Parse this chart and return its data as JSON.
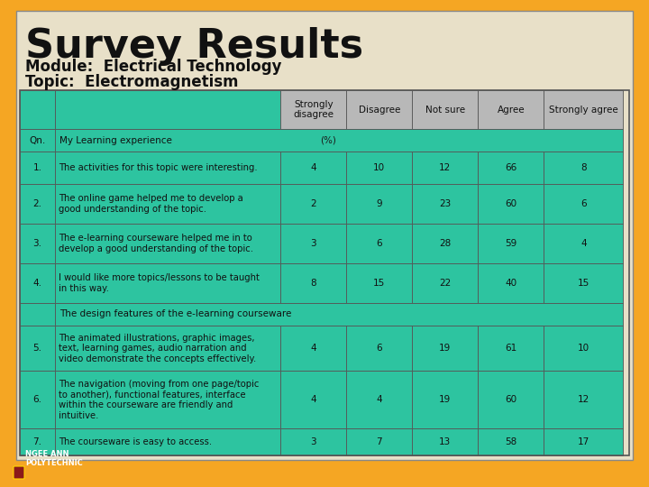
{
  "title": "Survey Results",
  "subtitle1": "Module:  Electrical Technology",
  "subtitle2": "Topic:  Electromagnetism",
  "bg_color": "#F5A623",
  "panel_color": "#E8E0C8",
  "teal_color": "#2DC4A0",
  "header_bg": "#B8B8B8",
  "text_dark": "#1a1a1a",
  "col_headers": [
    "Strongly\ndisagree",
    "Disagree",
    "Not sure",
    "Agree",
    "Strongly agree"
  ],
  "section_header2": "The design features of the e-learning courseware",
  "rows": [
    {
      "qn": "1.",
      "text": "The activities for this topic were interesting.",
      "values": [
        4,
        10,
        12,
        66,
        8
      ]
    },
    {
      "qn": "2.",
      "text": "The online game helped me to develop a\ngood understanding of the topic.",
      "values": [
        2,
        9,
        23,
        60,
        6
      ]
    },
    {
      "qn": "3.",
      "text": "The e-learning courseware helped me in to\ndevelop a good understanding of the topic.",
      "values": [
        3,
        6,
        28,
        59,
        4
      ]
    },
    {
      "qn": "4.",
      "text": "I would like more topics/lessons to be taught\nin this way.",
      "values": [
        8,
        15,
        22,
        40,
        15
      ]
    },
    {
      "qn": "5.",
      "text": "The animated illustrations, graphic images,\ntext, learning games, audio narration and\nvideo demonstrate the concepts effectively.",
      "values": [
        4,
        6,
        19,
        61,
        10
      ]
    },
    {
      "qn": "6.",
      "text": "The navigation (moving from one page/topic\nto another), functional features, interface\nwithin the courseware are friendly and\nintuitive.",
      "values": [
        4,
        4,
        19,
        60,
        12
      ]
    },
    {
      "qn": "7.",
      "text": "The courseware is easy to access.",
      "values": [
        3,
        7,
        13,
        58,
        17
      ]
    }
  ]
}
